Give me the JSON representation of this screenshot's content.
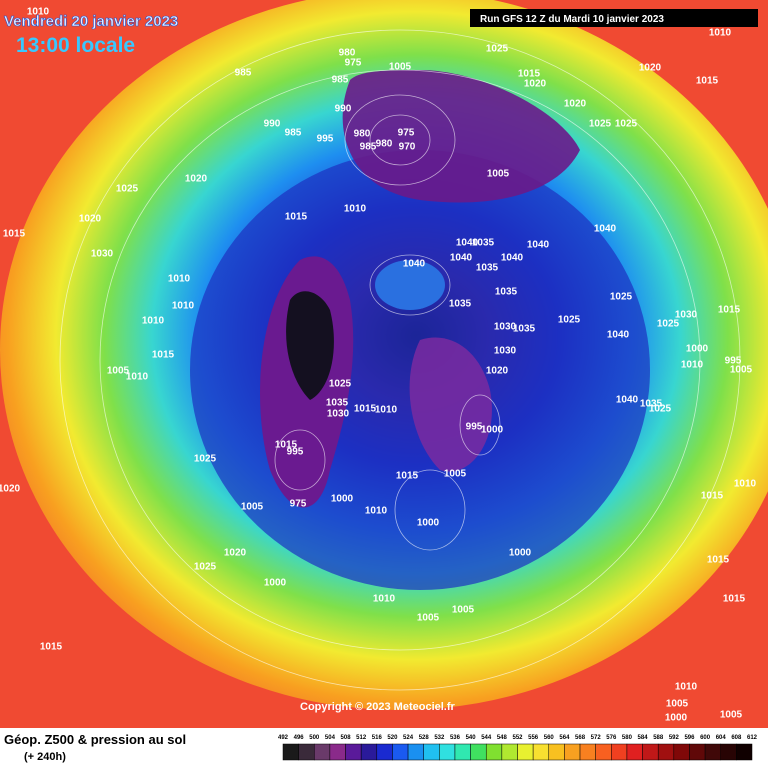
{
  "header": {
    "title": "Vendredi 20 janvier 2023",
    "subtitle": "13:00 locale",
    "run": "Run GFS 12 Z du Mardi 10 janvier 2023"
  },
  "map": {
    "isobar_labels": [
      1010,
      985,
      980,
      975,
      1005,
      985,
      990,
      1025,
      1015,
      1020,
      1010,
      1020,
      1015,
      1020,
      1025,
      1025,
      990,
      985,
      995,
      980,
      975,
      980,
      985,
      970,
      1020,
      1025,
      1005,
      1015,
      1020,
      1015,
      1010,
      1030,
      1040,
      1035,
      1040,
      1040,
      1040,
      1040,
      1035,
      1040,
      1010,
      1035,
      1035,
      1025,
      1025,
      1010,
      1010,
      1030,
      1035,
      1030,
      1015,
      1025,
      1040,
      1000,
      995,
      1005,
      1010,
      1015,
      1030,
      1020,
      1005,
      1010,
      1025,
      1035,
      1030,
      1015,
      1010,
      1040,
      1035,
      1025,
      995,
      1000,
      1015,
      995,
      1025,
      1015,
      1005,
      1015,
      1010,
      1020,
      1000,
      1005,
      975,
      1010,
      1000,
      1020,
      1025,
      1000,
      1015,
      1000,
      1010,
      1005,
      1005,
      1015,
      1015,
      1010,
      1005,
      1000,
      1005
    ]
  },
  "copyright": "Copyright © 2023 Meteociel.fr",
  "footer": {
    "title": "Géop. Z500 & pression au sol",
    "lead": "(+ 240h)"
  },
  "legend": {
    "labels": [
      492,
      496,
      500,
      504,
      508,
      512,
      516,
      520,
      524,
      528,
      532,
      536,
      540,
      544,
      548,
      552,
      556,
      560,
      564,
      568,
      572,
      576,
      580,
      584,
      588,
      592,
      596,
      600,
      604,
      608,
      612
    ]
  }
}
